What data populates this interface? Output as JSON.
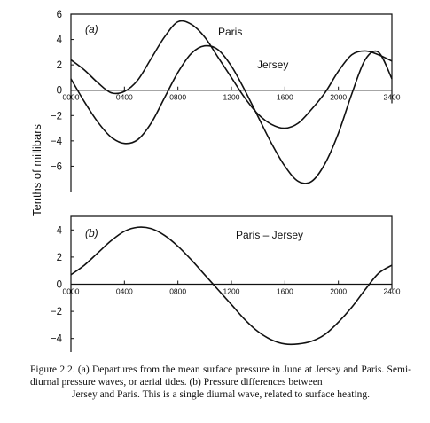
{
  "ylabel": "Tenths of millibars",
  "caption": {
    "line1": "Figure 2.2. (a) Departures from the mean surface pressure in June at Jersey and",
    "line2": "Paris. Semi-diurnal pressure waves, or aerial tides. (b) Pressure differences between",
    "line3": "Jersey and Paris. This is a single diurnal wave, related to surface heating."
  },
  "chart_data": [
    {
      "type": "line",
      "panel_label": "(a)",
      "x_ticks": [
        "0000",
        "0400",
        "0800",
        "1200",
        "1600",
        "2000",
        "2400"
      ],
      "y_ticks": [
        6,
        4,
        2,
        0,
        -2,
        -4,
        -6
      ],
      "xlim": [
        0,
        24
      ],
      "ylim": [
        -8,
        6
      ],
      "series": [
        {
          "name": "Paris",
          "x": [
            0,
            1,
            2,
            3,
            4,
            5,
            6,
            7,
            8,
            9,
            10,
            11,
            12,
            13,
            14,
            15,
            16,
            17,
            18,
            19,
            20,
            21,
            22,
            23,
            24
          ],
          "values": [
            2.4,
            1.6,
            0.6,
            -0.2,
            -0.1,
            0.8,
            2.5,
            4.2,
            5.4,
            5.2,
            4.2,
            2.6,
            1.0,
            -0.6,
            -1.9,
            -2.7,
            -3.0,
            -2.6,
            -1.5,
            -0.2,
            1.5,
            2.8,
            3.1,
            2.8,
            2.3
          ]
        },
        {
          "name": "Jersey",
          "x": [
            0,
            1,
            2,
            3,
            4,
            5,
            6,
            7,
            8,
            9,
            10,
            11,
            12,
            13,
            14,
            15,
            16,
            17,
            18,
            19,
            20,
            21,
            22,
            23,
            24
          ],
          "values": [
            0.9,
            -0.9,
            -2.5,
            -3.7,
            -4.2,
            -3.9,
            -2.6,
            -0.6,
            1.4,
            2.9,
            3.5,
            3.2,
            1.9,
            0.0,
            -2.1,
            -4.2,
            -6.0,
            -7.2,
            -7.2,
            -5.8,
            -3.4,
            -0.3,
            2.4,
            3.0,
            0.9
          ]
        }
      ]
    },
    {
      "type": "line",
      "panel_label": "(b)",
      "x_ticks": [
        "0000",
        "0400",
        "0800",
        "1200",
        "1600",
        "2000",
        "2400"
      ],
      "y_ticks": [
        4,
        2,
        0,
        -2,
        -4
      ],
      "xlim": [
        0,
        24
      ],
      "ylim": [
        -5,
        5
      ],
      "series": [
        {
          "name": "Paris – Jersey",
          "x": [
            0,
            1,
            2,
            3,
            4,
            5,
            6,
            7,
            8,
            9,
            10,
            11,
            12,
            13,
            14,
            15,
            16,
            17,
            18,
            19,
            20,
            21,
            22,
            23,
            24
          ],
          "values": [
            0.7,
            1.4,
            2.3,
            3.2,
            3.9,
            4.2,
            4.1,
            3.6,
            2.8,
            1.8,
            0.7,
            -0.4,
            -1.5,
            -2.6,
            -3.5,
            -4.1,
            -4.4,
            -4.4,
            -4.2,
            -3.7,
            -2.8,
            -1.7,
            -0.4,
            0.8,
            1.4
          ]
        }
      ]
    }
  ]
}
